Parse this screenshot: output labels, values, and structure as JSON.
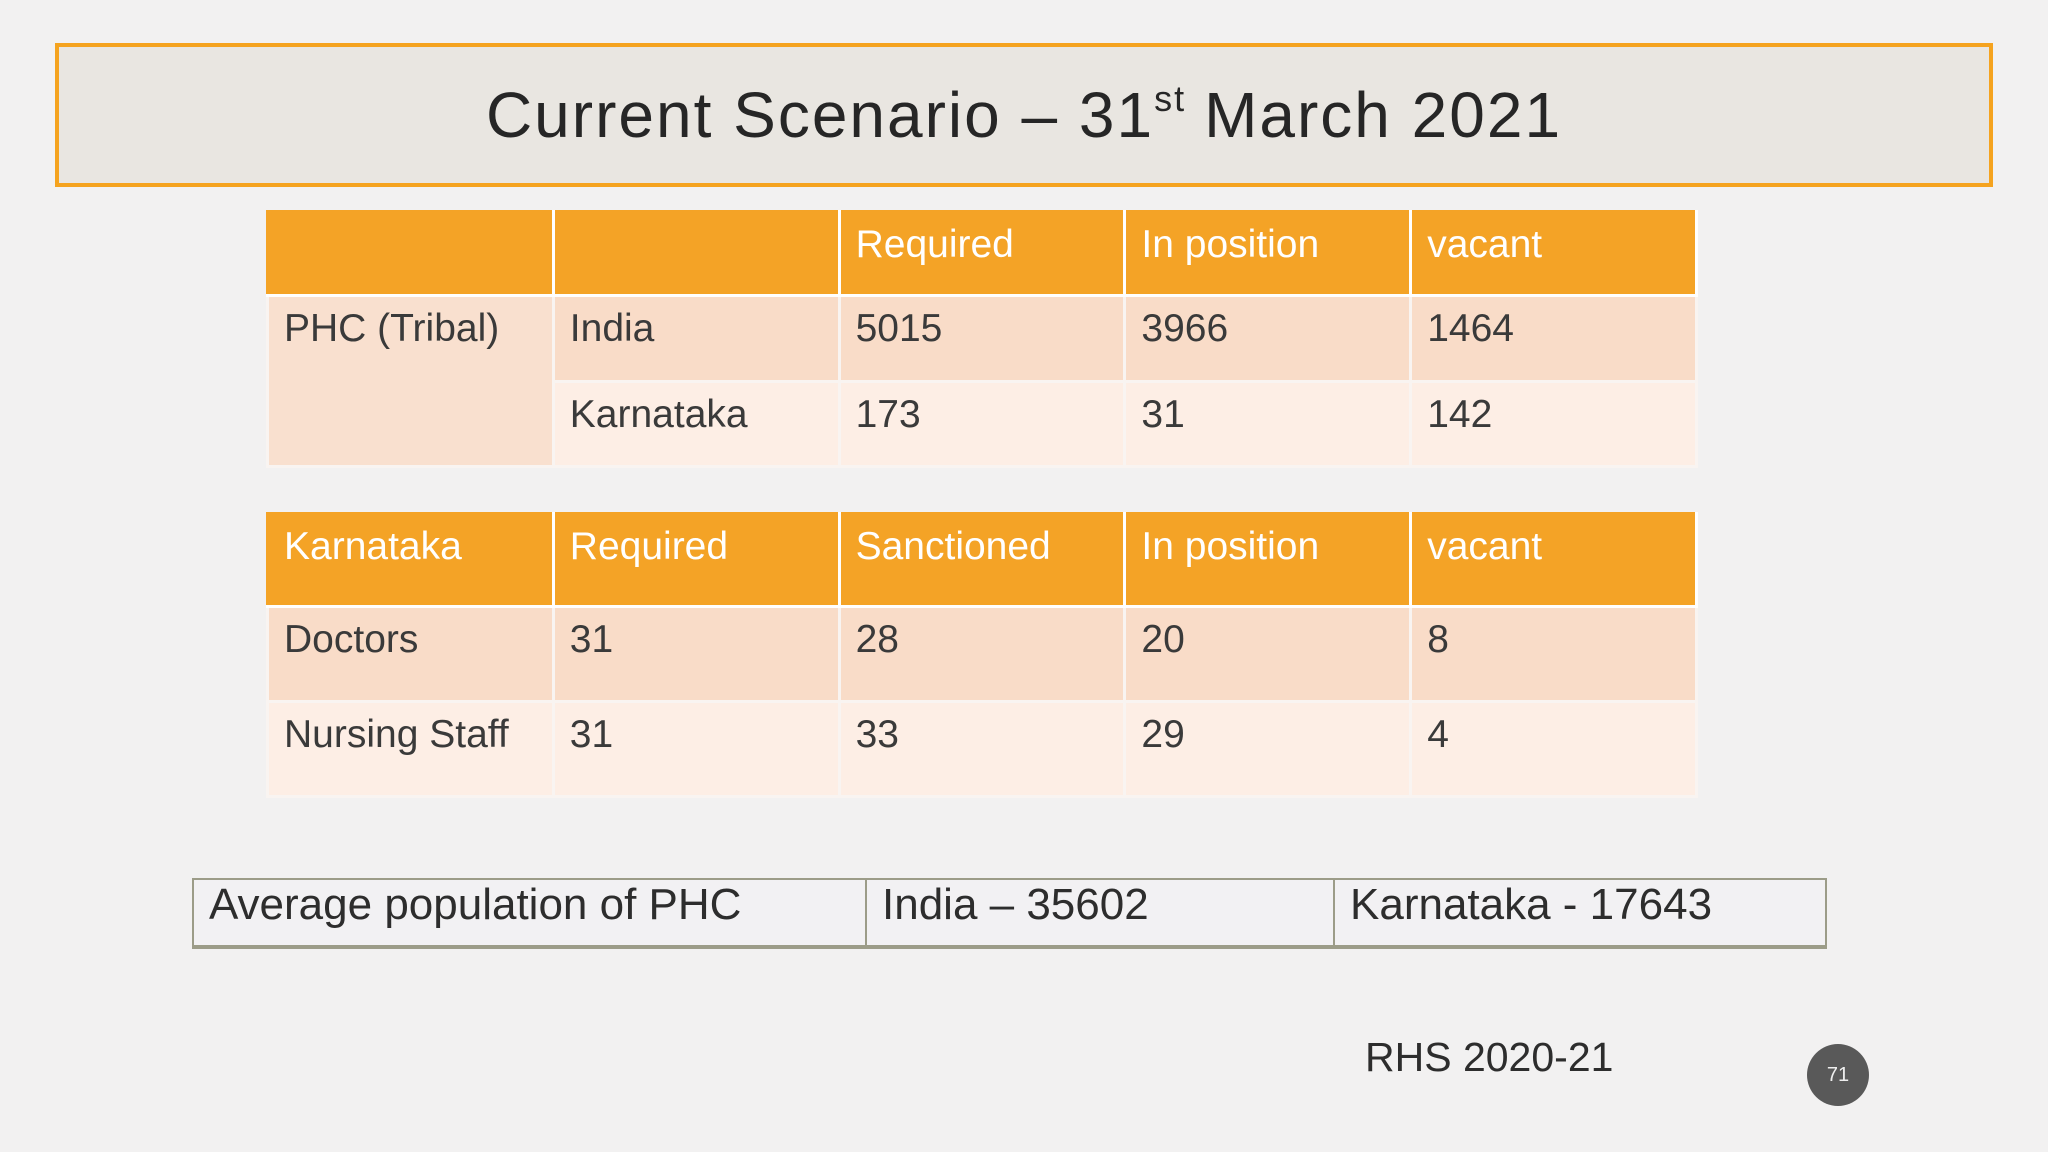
{
  "header": {
    "title": {
      "pre": "Current Scenario – 31",
      "sup": "st",
      "post": "March 2021"
    }
  },
  "table1": {
    "columns": [
      "Required",
      "In position",
      "vacant"
    ],
    "group": "PHC (Tribal)",
    "rows": [
      [
        "India",
        5015,
        3966,
        1464
      ],
      [
        "Karnataka",
        173,
        31,
        142
      ]
    ]
  },
  "table2": {
    "header": [
      "Karnataka",
      "Required",
      "Sanctioned",
      "In position",
      "vacant"
    ],
    "rows": [
      [
        "Doctors",
        31,
        28,
        20,
        8
      ],
      [
        "Nursing Staff",
        31,
        33,
        29,
        4
      ]
    ]
  },
  "table3": {
    "cells": [
      "Average population of PHC",
      "India – 35602",
      "Karnataka - 17643"
    ]
  },
  "footer": {
    "source": "RHS 2020-21",
    "page_number": "71"
  }
}
